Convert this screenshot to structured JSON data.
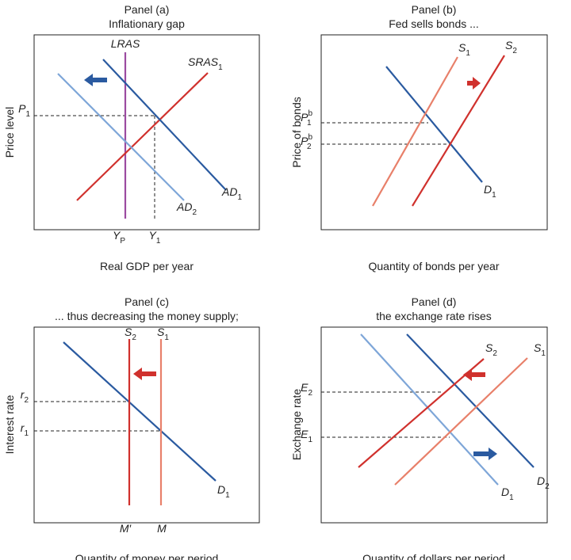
{
  "panels": [
    {
      "title": "Panel (a)",
      "subtitle": "Inflationary gap",
      "y_axis": "Price level",
      "x_axis": "Real GDP per year",
      "labels": [
        {
          "text": "LRAS"
        },
        {
          "text": "SRAS",
          "sub": "1"
        },
        {
          "text": "AD",
          "sub": "1"
        },
        {
          "text": "AD",
          "sub": "2"
        },
        {
          "text": "P",
          "sub": "1"
        },
        {
          "text": "Y",
          "sub": "P"
        },
        {
          "text": "Y",
          "sub": "1"
        }
      ]
    },
    {
      "title": "Panel (b)",
      "subtitle": "Fed sells bonds ...",
      "y_axis": "Price of bonds",
      "x_axis": "Quantity of bonds per year",
      "labels": [
        {
          "text": "S",
          "sub": "1"
        },
        {
          "text": "S",
          "sub": "2"
        },
        {
          "text": "D",
          "sub": "1"
        },
        {
          "text": "P",
          "sub": "1",
          "sup": "b"
        },
        {
          "text": "P",
          "sub": "2",
          "sup": "b"
        }
      ]
    },
    {
      "title": "Panel (c)",
      "subtitle": "... thus decreasing the money supply;",
      "y_axis": "Interest rate",
      "x_axis": "Quantity of money per period",
      "labels": [
        {
          "text": "S",
          "sub": "2"
        },
        {
          "text": "S",
          "sub": "1"
        },
        {
          "text": "D",
          "sub": "1"
        },
        {
          "text": "r",
          "sub": "2"
        },
        {
          "text": "r",
          "sub": "1"
        },
        {
          "text": "M′"
        },
        {
          "text": "M"
        }
      ]
    },
    {
      "title": "Panel (d)",
      "subtitle": "the exchange rate rises",
      "y_axis": "Exchange rate",
      "x_axis": "Quantity of dollars per period",
      "labels": [
        {
          "text": "S",
          "sub": "2"
        },
        {
          "text": "S",
          "sub": "1"
        },
        {
          "text": "D",
          "sub": "1"
        },
        {
          "text": "D",
          "sub": "2"
        },
        {
          "text": "E",
          "sub": "2"
        },
        {
          "text": "E",
          "sub": "1"
        }
      ]
    }
  ]
}
